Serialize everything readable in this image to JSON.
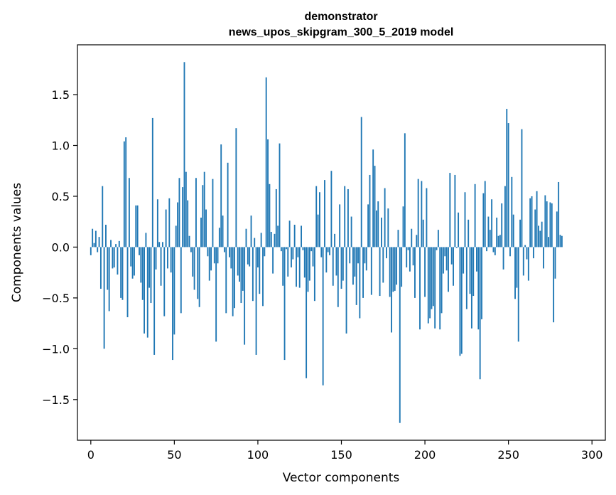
{
  "chart_data": {
    "type": "bar",
    "title": "demonstrator",
    "subtitle": "news_upos_skipgram_300_5_2019 model",
    "xlabel": "Vector components",
    "ylabel": "Components values",
    "xlim": [
      -8,
      308
    ],
    "ylim": [
      -1.9,
      1.99
    ],
    "xticks": [
      0,
      50,
      100,
      150,
      200,
      250,
      300
    ],
    "yticks": [
      -1.5,
      -1.0,
      -0.5,
      0.0,
      0.5,
      1.0,
      1.5
    ],
    "ytick_labels": [
      "−1.5",
      "−1.0",
      "−0.5",
      "0.0",
      "0.5",
      "1.0",
      "1.5"
    ],
    "bar_color": "#1f77b4",
    "grid": false,
    "legend": "none",
    "values": [
      -0.08,
      0.18,
      0.04,
      0.16,
      -0.05,
      0.1,
      -0.41,
      0.6,
      -1.0,
      0.22,
      -0.42,
      -0.63,
      0.07,
      -0.21,
      -0.2,
      0.03,
      -0.27,
      0.06,
      -0.5,
      -0.52,
      1.04,
      1.08,
      -0.69,
      0.68,
      -0.19,
      -0.31,
      -0.28,
      0.41,
      0.41,
      -0.08,
      -0.35,
      -0.52,
      -0.85,
      0.14,
      -0.89,
      -0.4,
      -0.55,
      1.27,
      -1.06,
      -0.22,
      0.47,
      0.05,
      -0.38,
      0.05,
      -0.68,
      0.37,
      -0.21,
      0.48,
      -0.25,
      -1.11,
      -0.86,
      0.21,
      0.44,
      0.68,
      -0.65,
      0.59,
      1.82,
      0.74,
      0.46,
      0.11,
      -0.05,
      -0.29,
      -0.42,
      0.68,
      -0.51,
      -0.59,
      0.29,
      0.61,
      0.74,
      0.37,
      -0.09,
      -0.33,
      -0.23,
      0.67,
      -0.16,
      -0.93,
      -0.16,
      0.19,
      1.01,
      0.31,
      -0.05,
      -0.65,
      0.83,
      -0.1,
      -0.21,
      -0.68,
      -0.6,
      1.17,
      -0.28,
      -0.34,
      -0.55,
      -0.43,
      -0.96,
      0.18,
      -0.17,
      -0.19,
      0.31,
      -0.53,
      0.09,
      -1.06,
      -0.2,
      -0.46,
      0.14,
      -0.58,
      -0.09,
      1.67,
      1.06,
      0.62,
      0.15,
      -0.26,
      0.13,
      0.57,
      0.21,
      1.02,
      -0.04,
      -0.38,
      -1.11,
      -0.02,
      -0.29,
      0.26,
      -0.2,
      -0.12,
      0.22,
      -0.39,
      -0.1,
      -0.4,
      0.21,
      -0.03,
      -0.3,
      -1.29,
      -0.44,
      -0.33,
      -0.04,
      -0.19,
      -0.53,
      0.6,
      0.32,
      0.54,
      -0.1,
      -1.36,
      0.66,
      -0.25,
      -0.05,
      -0.08,
      0.75,
      -0.38,
      0.13,
      -0.28,
      -0.59,
      0.42,
      -0.41,
      -0.33,
      0.6,
      -0.85,
      0.57,
      -0.16,
      0.3,
      -0.37,
      -0.29,
      -0.57,
      -0.16,
      -0.7,
      1.28,
      -0.5,
      -0.16,
      -0.23,
      0.42,
      0.71,
      -0.47,
      0.96,
      0.8,
      0.36,
      0.45,
      -0.48,
      0.29,
      -0.35,
      0.58,
      -0.11,
      0.38,
      -0.49,
      -0.84,
      -0.44,
      -0.43,
      -0.37,
      0.17,
      -1.73,
      -0.39,
      0.4,
      1.12,
      -0.2,
      -0.03,
      -0.24,
      0.18,
      -0.18,
      -0.5,
      0.12,
      0.67,
      -0.81,
      0.65,
      0.27,
      -0.49,
      0.58,
      -0.75,
      -0.7,
      -0.61,
      -0.58,
      -0.8,
      -0.03,
      0.17,
      -0.81,
      -0.65,
      -0.26,
      -0.09,
      -0.23,
      -0.44,
      0.73,
      -0.17,
      -0.38,
      0.71,
      -0.01,
      0.34,
      -1.07,
      -1.05,
      -0.26,
      0.54,
      -0.61,
      0.27,
      -0.46,
      -0.8,
      -0.48,
      0.62,
      -0.24,
      -0.81,
      -1.3,
      -0.71,
      0.53,
      0.65,
      -0.04,
      0.3,
      0.17,
      0.47,
      -0.05,
      -0.08,
      0.29,
      0.11,
      0.12,
      0.43,
      -0.22,
      0.6,
      1.36,
      1.22,
      -0.09,
      0.69,
      0.32,
      -0.51,
      -0.4,
      -0.93,
      0.27,
      1.16,
      -0.28,
      0.02,
      -0.12,
      -0.33,
      0.48,
      0.5,
      -0.11,
      0.37,
      0.55,
      0.21,
      0.16,
      0.25,
      -0.21,
      0.51,
      0.45,
      0.1,
      0.44,
      0.43,
      -0.74,
      -0.31,
      0.35,
      0.64,
      0.12,
      0.11
    ]
  }
}
